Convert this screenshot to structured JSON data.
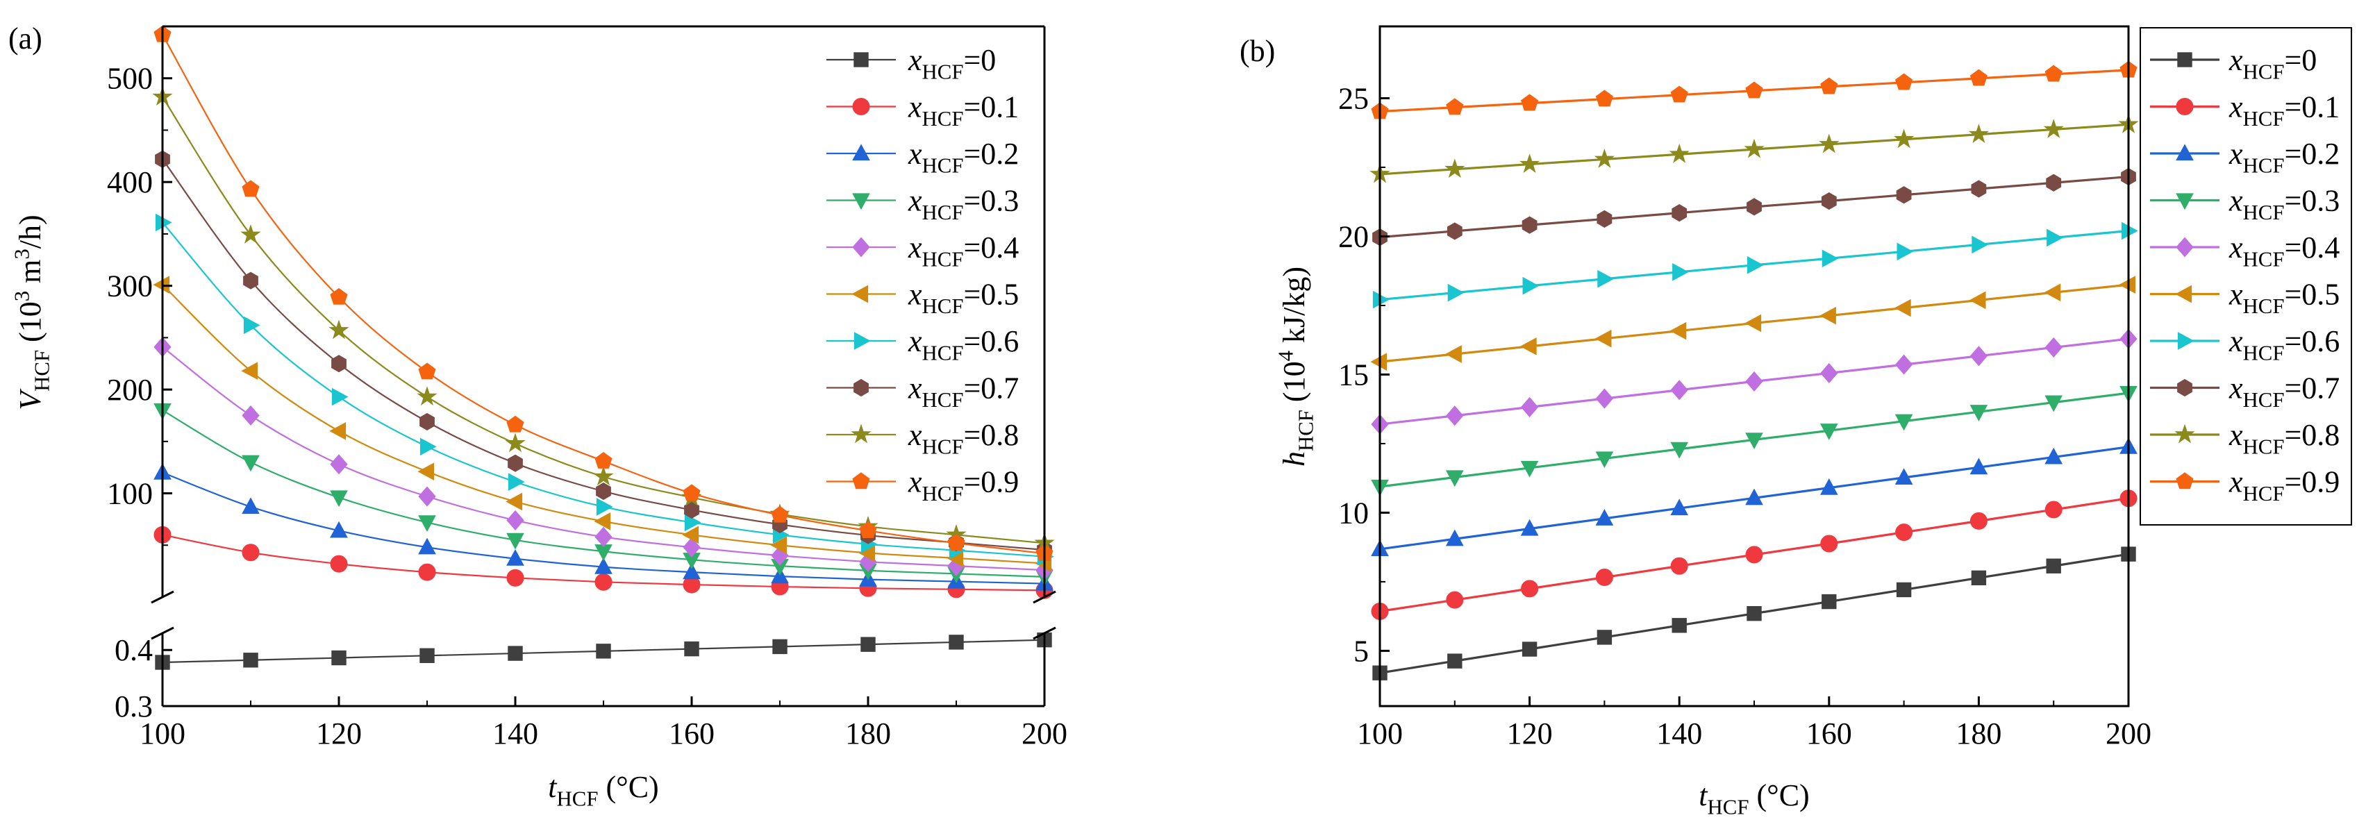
{
  "colors": {
    "x0": "#3f3f3f",
    "x1": "#f0383f",
    "x2": "#1f63d6",
    "x3": "#2fae6a",
    "x4": "#c06fe0",
    "x5": "#d18a0f",
    "x6": "#19c5cf",
    "x7": "#7a4a44",
    "x8": "#8c8a1c",
    "x9": "#f5630f"
  },
  "markers": [
    "square",
    "circle",
    "triangle-up",
    "triangle-down",
    "diamond",
    "triangle-left",
    "triangle-right",
    "hexagon",
    "star",
    "pentagon"
  ],
  "chart_data": [
    {
      "panel_label": "(a)",
      "type": "line",
      "xlabel_main": "t",
      "xlabel_sub": "HCF",
      "xlabel_unit": " (°C)",
      "ylabel_main": "V",
      "ylabel_sub": "HCF",
      "ylabel_unit_pre": " (10",
      "ylabel_unit_sup": "3",
      "ylabel_unit_mid": " m",
      "ylabel_unit_sup2": "3",
      "ylabel_unit_post": "/h)",
      "xlim": [
        100,
        200
      ],
      "xticks": [
        100,
        120,
        140,
        160,
        180,
        200
      ],
      "broken_axis": true,
      "upper_ylim": [
        0,
        550
      ],
      "upper_yticks": [
        100,
        200,
        300,
        400,
        500
      ],
      "lower_ylim": [
        0.3,
        0.43
      ],
      "lower_yticks": [
        0.3,
        0.4
      ],
      "legend_position": "top-right",
      "x": [
        100,
        110,
        120,
        130,
        140,
        150,
        160,
        170,
        180,
        190,
        200
      ],
      "series": [
        {
          "name_main": "x",
          "name_sub": "HCF",
          "name_val": "=0",
          "color_key": "x0",
          "axis": "lower",
          "values": [
            0.378,
            0.382,
            0.386,
            0.39,
            0.394,
            0.398,
            0.402,
            0.406,
            0.41,
            0.414,
            0.418
          ]
        },
        {
          "name_main": "x",
          "name_sub": "HCF",
          "name_val": "=0.1",
          "color_key": "x1",
          "axis": "upper",
          "values": [
            60,
            43,
            32,
            24,
            18.5,
            14.5,
            12,
            10,
            8.5,
            7.5,
            6.5
          ]
        },
        {
          "name_main": "x",
          "name_sub": "HCF",
          "name_val": "=0.2",
          "color_key": "x2",
          "axis": "upper",
          "values": [
            120,
            87,
            64,
            48,
            37,
            29,
            24,
            20,
            17,
            15,
            13
          ]
        },
        {
          "name_main": "x",
          "name_sub": "HCF",
          "name_val": "=0.3",
          "color_key": "x3",
          "axis": "upper",
          "values": [
            180,
            130,
            96,
            72,
            55,
            44,
            36,
            30,
            25.5,
            22.5,
            19.5
          ]
        },
        {
          "name_main": "x",
          "name_sub": "HCF",
          "name_val": "=0.4",
          "color_key": "x4",
          "axis": "upper",
          "values": [
            241,
            175,
            128,
            97,
            74,
            58,
            48,
            40,
            34,
            30,
            26
          ]
        },
        {
          "name_main": "x",
          "name_sub": "HCF",
          "name_val": "=0.5",
          "color_key": "x5",
          "axis": "upper",
          "values": [
            301,
            218,
            160,
            121,
            92,
            73,
            60,
            50,
            42.5,
            37.5,
            32.5
          ]
        },
        {
          "name_main": "x",
          "name_sub": "HCF",
          "name_val": "=0.6",
          "color_key": "x6",
          "axis": "upper",
          "values": [
            361,
            262,
            193,
            145,
            111,
            87,
            72,
            60,
            51,
            45,
            39
          ]
        },
        {
          "name_main": "x",
          "name_sub": "HCF",
          "name_val": "=0.7",
          "color_key": "x7",
          "axis": "upper",
          "values": [
            422,
            305,
            225,
            169,
            129,
            102,
            84,
            70,
            59.5,
            52.5,
            45.5
          ]
        },
        {
          "name_main": "x",
          "name_sub": "HCF",
          "name_val": "=0.8",
          "color_key": "x8",
          "axis": "upper",
          "values": [
            482,
            349,
            257,
            193,
            148,
            116,
            96,
            80,
            68,
            60,
            52
          ]
        },
        {
          "name_main": "x",
          "name_sub": "HCF",
          "name_val": "=0.9",
          "color_key": "x9",
          "axis": "upper",
          "values": [
            542,
            393,
            289,
            217,
            166,
            131,
            100,
            79,
            64,
            52,
            42
          ]
        }
      ]
    },
    {
      "panel_label": "(b)",
      "type": "line",
      "xlabel_main": "t",
      "xlabel_sub": "HCF",
      "xlabel_unit": " (°C)",
      "ylabel_main": "h",
      "ylabel_sub": "HCF",
      "ylabel_unit_pre": " (10",
      "ylabel_unit_sup": "4",
      "ylabel_unit_post": " kJ/kg)",
      "xlim": [
        100,
        200
      ],
      "xticks": [
        100,
        120,
        140,
        160,
        180,
        200
      ],
      "ylim": [
        3.0,
        27.6
      ],
      "yticks": [
        5,
        10,
        15,
        20,
        25
      ],
      "legend_position": "outside-right",
      "x": [
        100,
        110,
        120,
        130,
        140,
        150,
        160,
        170,
        180,
        190,
        200
      ],
      "series": [
        {
          "name_main": "x",
          "name_sub": "HCF",
          "name_val": "=0",
          "color_key": "x0",
          "values": [
            4.2,
            4.63,
            5.06,
            5.49,
            5.92,
            6.35,
            6.78,
            7.21,
            7.64,
            8.07,
            8.5
          ]
        },
        {
          "name_main": "x",
          "name_sub": "HCF",
          "name_val": "=0.1",
          "color_key": "x1",
          "values": [
            6.43,
            6.84,
            7.25,
            7.66,
            8.07,
            8.48,
            8.88,
            9.29,
            9.7,
            10.11,
            10.52
          ]
        },
        {
          "name_main": "x",
          "name_sub": "HCF",
          "name_val": "=0.2",
          "color_key": "x2",
          "values": [
            8.68,
            9.05,
            9.42,
            9.79,
            10.16,
            10.53,
            10.9,
            11.27,
            11.64,
            12.01,
            12.38
          ]
        },
        {
          "name_main": "x",
          "name_sub": "HCF",
          "name_val": "=0.3",
          "color_key": "x3",
          "values": [
            10.94,
            11.28,
            11.62,
            11.96,
            12.3,
            12.64,
            12.97,
            13.31,
            13.65,
            13.99,
            14.33
          ]
        },
        {
          "name_main": "x",
          "name_sub": "HCF",
          "name_val": "=0.4",
          "color_key": "x4",
          "values": [
            13.2,
            13.51,
            13.82,
            14.13,
            14.44,
            14.75,
            15.05,
            15.36,
            15.67,
            15.98,
            16.29
          ]
        },
        {
          "name_main": "x",
          "name_sub": "HCF",
          "name_val": "=0.5",
          "color_key": "x5",
          "values": [
            15.46,
            15.74,
            16.02,
            16.3,
            16.58,
            16.86,
            17.13,
            17.41,
            17.69,
            17.97,
            18.25
          ]
        },
        {
          "name_main": "x",
          "name_sub": "HCF",
          "name_val": "=0.6",
          "color_key": "x6",
          "values": [
            17.71,
            17.96,
            18.21,
            18.46,
            18.71,
            18.96,
            19.2,
            19.45,
            19.7,
            19.95,
            20.2
          ]
        },
        {
          "name_main": "x",
          "name_sub": "HCF",
          "name_val": "=0.7",
          "color_key": "x7",
          "values": [
            19.97,
            20.19,
            20.41,
            20.63,
            20.85,
            21.07,
            21.28,
            21.5,
            21.72,
            21.94,
            22.16
          ]
        },
        {
          "name_main": "x",
          "name_sub": "HCF",
          "name_val": "=0.8",
          "color_key": "x8",
          "values": [
            22.25,
            22.43,
            22.61,
            22.79,
            22.97,
            23.15,
            23.33,
            23.51,
            23.69,
            23.87,
            24.05
          ]
        },
        {
          "name_main": "x",
          "name_sub": "HCF",
          "name_val": "=0.9",
          "color_key": "x9",
          "values": [
            24.52,
            24.67,
            24.82,
            24.97,
            25.12,
            25.27,
            25.42,
            25.57,
            25.72,
            25.87,
            26.02
          ]
        }
      ]
    }
  ]
}
